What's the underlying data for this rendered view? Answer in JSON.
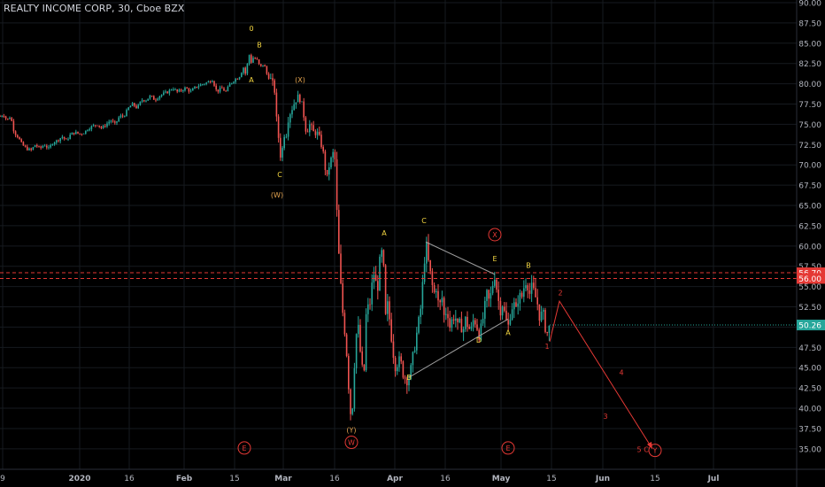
{
  "title": "REALTY INCOME CORP, 30, Cboe BZX",
  "colors": {
    "up": "#26a69a",
    "down": "#ef5350",
    "grid": "#161a1f",
    "axis_text": "#b2b5be",
    "label_yellow": "#f5d742",
    "label_orange": "#e3a34f",
    "label_red": "#e53935",
    "triangle_line": "#9e9e9e",
    "projection": "#e53935",
    "hline": "#e53935",
    "last_price_bg": "#26a69a"
  },
  "chart_data": {
    "type": "candlestick",
    "title": "REALTY INCOME CORP, 30, Cboe BZX",
    "ylim": [
      34,
      90
    ],
    "y_ticks": [
      "90.00",
      "87.50",
      "85.00",
      "82.50",
      "80.00",
      "77.50",
      "75.00",
      "72.50",
      "70.00",
      "67.50",
      "65.00",
      "62.50",
      "60.00",
      "57.50",
      "55.00",
      "52.50",
      "50.00",
      "47.50",
      "45.00",
      "42.50",
      "40.00",
      "37.50",
      "35.00"
    ],
    "x_ticks": [
      "9",
      "2020",
      "16",
      "Feb",
      "15",
      "Mar",
      "16",
      "Apr",
      "16",
      "May",
      "15",
      "Jun",
      "15",
      "Jul"
    ],
    "price_path": [
      [
        0,
        76
      ],
      [
        4,
        76.2
      ],
      [
        8,
        75.5
      ],
      [
        12,
        76
      ],
      [
        16,
        74
      ],
      [
        20,
        73.5
      ],
      [
        25,
        72.5
      ],
      [
        30,
        72
      ],
      [
        35,
        71.8
      ],
      [
        40,
        72.5
      ],
      [
        45,
        72
      ],
      [
        50,
        72.5
      ],
      [
        55,
        72
      ],
      [
        60,
        72.8
      ],
      [
        65,
        73
      ],
      [
        70,
        73.5
      ],
      [
        75,
        73
      ],
      [
        80,
        73.8
      ],
      [
        85,
        74
      ],
      [
        90,
        73.8
      ],
      [
        95,
        74
      ],
      [
        100,
        74.5
      ],
      [
        105,
        74.8
      ],
      [
        110,
        75
      ],
      [
        115,
        74.5
      ],
      [
        120,
        75
      ],
      [
        125,
        75.5
      ],
      [
        130,
        75
      ],
      [
        135,
        76
      ],
      [
        140,
        76
      ],
      [
        145,
        77
      ],
      [
        150,
        77.5
      ],
      [
        155,
        77
      ],
      [
        160,
        78
      ],
      [
        165,
        78
      ],
      [
        170,
        78.5
      ],
      [
        175,
        78
      ],
      [
        180,
        78.5
      ],
      [
        185,
        78.8
      ],
      [
        190,
        79
      ],
      [
        195,
        79.5
      ],
      [
        200,
        79
      ],
      [
        205,
        79.2
      ],
      [
        210,
        79.5
      ],
      [
        215,
        79
      ],
      [
        220,
        79.5
      ],
      [
        225,
        79.8
      ],
      [
        230,
        80
      ],
      [
        235,
        80.2
      ],
      [
        240,
        80.5
      ],
      [
        245,
        79
      ],
      [
        250,
        79.5
      ],
      [
        255,
        79
      ],
      [
        260,
        80
      ],
      [
        265,
        80.5
      ],
      [
        270,
        80.8
      ],
      [
        275,
        82
      ],
      [
        278,
        81
      ],
      [
        281,
        84
      ],
      [
        283,
        82.5
      ],
      [
        286,
        83.2
      ],
      [
        290,
        83
      ],
      [
        294,
        82
      ],
      [
        298,
        82.5
      ],
      [
        302,
        81
      ],
      [
        306,
        80.5
      ],
      [
        310,
        79.5
      ],
      [
        312,
        76
      ],
      [
        314,
        74
      ],
      [
        316,
        72
      ],
      [
        318,
        70
      ],
      [
        320,
        74
      ],
      [
        323,
        73.5
      ],
      [
        326,
        76
      ],
      [
        330,
        77
      ],
      [
        334,
        78
      ],
      [
        338,
        78.5
      ],
      [
        342,
        77
      ],
      [
        346,
        74
      ],
      [
        350,
        75
      ],
      [
        354,
        74
      ],
      [
        358,
        74
      ],
      [
        362,
        73
      ],
      [
        366,
        71
      ],
      [
        369,
        68
      ],
      [
        372,
        70
      ],
      [
        375,
        71
      ],
      [
        378,
        72
      ],
      [
        380,
        65
      ],
      [
        382,
        62
      ],
      [
        383,
        58
      ],
      [
        385,
        55
      ],
      [
        387,
        52
      ],
      [
        389,
        50
      ],
      [
        391,
        48
      ],
      [
        393,
        44
      ],
      [
        395,
        41
      ],
      [
        397,
        38
      ],
      [
        399,
        42
      ],
      [
        401,
        47
      ],
      [
        404,
        51
      ],
      [
        406,
        48
      ],
      [
        408,
        46
      ],
      [
        410,
        44
      ],
      [
        412,
        45
      ],
      [
        414,
        53
      ],
      [
        417,
        52
      ],
      [
        420,
        55
      ],
      [
        423,
        57
      ],
      [
        426,
        54
      ],
      [
        429,
        58
      ],
      [
        432,
        59.5
      ],
      [
        434,
        56
      ],
      [
        436,
        50
      ],
      [
        438,
        53
      ],
      [
        441,
        50
      ],
      [
        444,
        47
      ],
      [
        447,
        45
      ],
      [
        450,
        46
      ],
      [
        453,
        45.5
      ],
      [
        456,
        44
      ],
      [
        460,
        43.5
      ],
      [
        463,
        44
      ],
      [
        466,
        46
      ],
      [
        469,
        48
      ],
      [
        472,
        50
      ],
      [
        475,
        52
      ],
      [
        478,
        56
      ],
      [
        481,
        60.5
      ],
      [
        484,
        58
      ],
      [
        487,
        56
      ],
      [
        490,
        54
      ],
      [
        493,
        55
      ],
      [
        496,
        52
      ],
      [
        499,
        54
      ],
      [
        502,
        51
      ],
      [
        505,
        52.5
      ],
      [
        508,
        50
      ],
      [
        511,
        51
      ],
      [
        514,
        51.5
      ],
      [
        517,
        50
      ],
      [
        520,
        50.5
      ],
      [
        523,
        49.5
      ],
      [
        526,
        51
      ],
      [
        529,
        50
      ],
      [
        532,
        49.5
      ],
      [
        535,
        51
      ],
      [
        538,
        50.5
      ],
      [
        541,
        49
      ],
      [
        544,
        50
      ],
      [
        547,
        52
      ],
      [
        550,
        54
      ],
      [
        553,
        53
      ],
      [
        556,
        55
      ],
      [
        559,
        56.5
      ],
      [
        562,
        54
      ],
      [
        565,
        52
      ],
      [
        568,
        53
      ],
      [
        571,
        51
      ],
      [
        574,
        50
      ],
      [
        577,
        52
      ],
      [
        580,
        53
      ],
      [
        583,
        52
      ],
      [
        586,
        54
      ],
      [
        589,
        53.5
      ],
      [
        592,
        55
      ],
      [
        595,
        56
      ],
      [
        598,
        54
      ],
      [
        601,
        55
      ],
      [
        604,
        54
      ],
      [
        607,
        53
      ],
      [
        610,
        51
      ],
      [
        613,
        52
      ],
      [
        616,
        50
      ],
      [
        619,
        49
      ],
      [
        621,
        50.3
      ]
    ],
    "wave_labels": [
      {
        "text": "0",
        "x": 284,
        "y": 86.5,
        "color": "label_yellow"
      },
      {
        "text": "B",
        "x": 293,
        "y": 84.5,
        "color": "label_yellow"
      },
      {
        "text": "A",
        "x": 284,
        "y": 80.2,
        "color": "label_yellow"
      },
      {
        "text": "(X)",
        "x": 339,
        "y": 80.2,
        "color": "label_orange"
      },
      {
        "text": "C",
        "x": 316,
        "y": 68.5,
        "color": "label_yellow"
      },
      {
        "text": "(W)",
        "x": 313,
        "y": 66,
        "color": "label_orange"
      },
      {
        "text": "A",
        "x": 434,
        "y": 61.3,
        "color": "label_yellow"
      },
      {
        "text": "C",
        "x": 479,
        "y": 62.8,
        "color": "label_yellow"
      },
      {
        "text": "E",
        "x": 559,
        "y": 58.1,
        "color": "label_yellow"
      },
      {
        "text": "B",
        "x": 597,
        "y": 57.3,
        "color": "label_yellow"
      },
      {
        "text": "D",
        "x": 541,
        "y": 48.1,
        "color": "label_yellow"
      },
      {
        "text": "A",
        "x": 574,
        "y": 49,
        "color": "label_yellow"
      },
      {
        "text": "B",
        "x": 462,
        "y": 43.5,
        "color": "label_yellow"
      },
      {
        "text": "(Y)",
        "x": 397,
        "y": 37,
        "color": "label_orange"
      },
      {
        "text": "1",
        "x": 618,
        "y": 47.3,
        "color": "label_red"
      },
      {
        "text": "2",
        "x": 633,
        "y": 53.9,
        "color": "label_red"
      },
      {
        "text": "4",
        "x": 702,
        "y": 44.1,
        "color": "label_red"
      },
      {
        "text": "3",
        "x": 684,
        "y": 38.7,
        "color": "label_red"
      },
      {
        "text": "5",
        "x": 722,
        "y": 34.6,
        "color": "label_red"
      },
      {
        "text": "C",
        "x": 730,
        "y": 34.6,
        "color": "label_red"
      }
    ],
    "circled_labels": [
      {
        "text": "X",
        "x": 559,
        "y": 61.4,
        "color": "label_red"
      },
      {
        "text": "W",
        "x": 397,
        "y": 35.8,
        "color": "label_red"
      },
      {
        "text": "Y",
        "x": 740,
        "y": 34.8,
        "color": "label_red"
      },
      {
        "text": "E",
        "x": 276,
        "y": 35.1,
        "color": "label_red"
      },
      {
        "text": "E",
        "x": 574,
        "y": 35.1,
        "color": "label_red"
      }
    ],
    "triangle_lines": [
      [
        [
          481,
          60.5
        ],
        [
          559,
          56.5
        ]
      ],
      [
        [
          462,
          43.8
        ],
        [
          574,
          51
        ]
      ]
    ],
    "projection_path": [
      [
        621,
        48.2
      ],
      [
        632,
        53.2
      ],
      [
        737,
        35
      ]
    ],
    "horizontal_levels": [
      56.7,
      56.0
    ],
    "level_labels": [
      "56.70",
      "56.00"
    ],
    "last_price": 50.26,
    "last_price_label": "50.26"
  }
}
